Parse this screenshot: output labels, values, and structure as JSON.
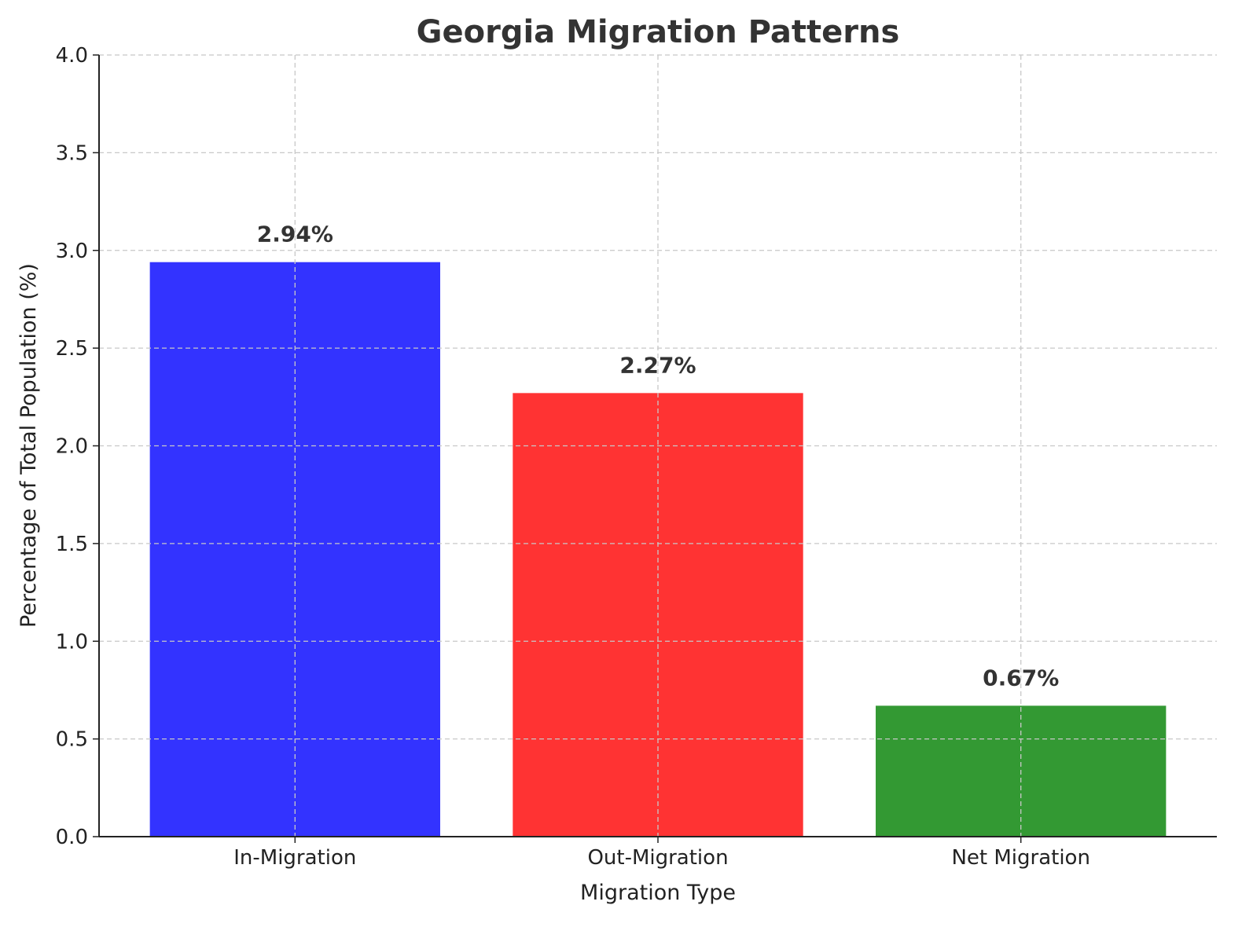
{
  "chart_data": {
    "type": "bar",
    "title": "Georgia Migration Patterns",
    "xlabel": "Migration Type",
    "ylabel": "Percentage of Total Population (%)",
    "categories": [
      "In-Migration",
      "Out-Migration",
      "Net Migration"
    ],
    "values": [
      2.94,
      2.27,
      0.67
    ],
    "data_labels": [
      "2.94%",
      "2.27%",
      "0.67%"
    ],
    "colors": [
      "#3333ff",
      "#ff3333",
      "#339933"
    ],
    "ylim": [
      0,
      4.0
    ],
    "yticks": [
      "0.0",
      "0.5",
      "1.0",
      "1.5",
      "2.0",
      "2.5",
      "3.0",
      "3.5",
      "4.0"
    ],
    "grid": true,
    "legend": "none"
  }
}
